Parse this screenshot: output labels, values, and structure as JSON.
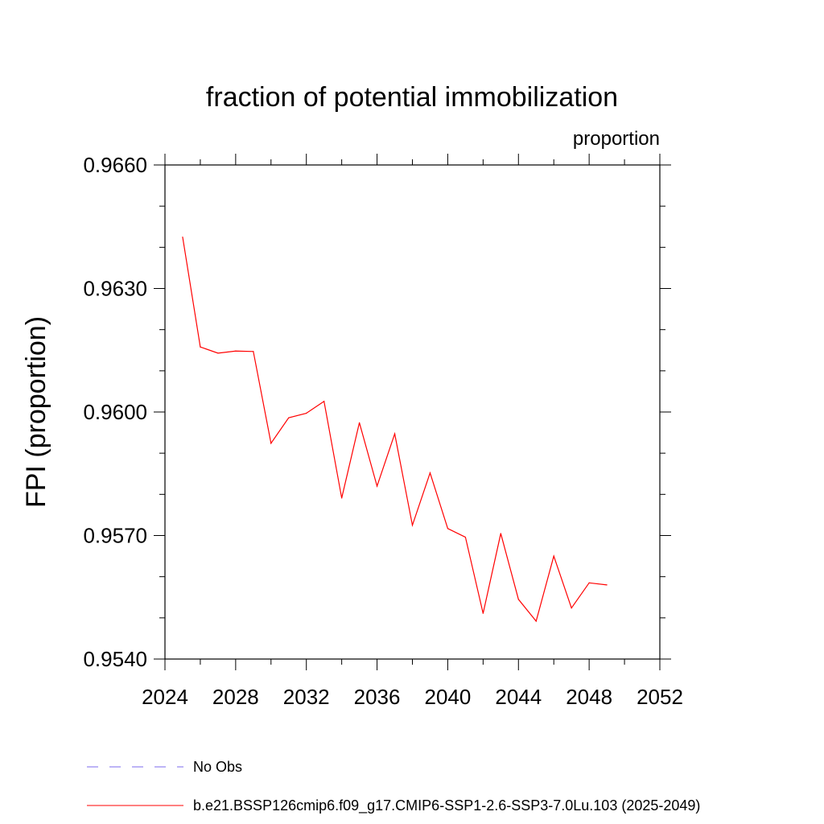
{
  "chart_data": {
    "type": "line",
    "title": "fraction of potential immobilization",
    "units_label": "proportion",
    "ylabel": "FPI  (proportion)",
    "xlabel": "",
    "xlim": [
      2024,
      2052
    ],
    "ylim": [
      0.954,
      0.966
    ],
    "x_ticks": [
      2024,
      2028,
      2032,
      2036,
      2040,
      2044,
      2048,
      2052
    ],
    "x_tick_labels": [
      "2024",
      "2028",
      "2032",
      "2036",
      "2040",
      "2044",
      "2048",
      "2052"
    ],
    "y_ticks": [
      0.954,
      0.957,
      0.96,
      0.963,
      0.966
    ],
    "y_tick_labels": [
      "0.9540",
      "0.9570",
      "0.9600",
      "0.9630",
      "0.9660"
    ],
    "grid": false,
    "series": [
      {
        "name": "b.e21.BSSP126cmip6.f09_g17.CMIP6-SSP1-2.6-SSP3-7.0Lu.103 (2025-2049)",
        "color": "#ff0000",
        "style": "solid",
        "x": [
          2025,
          2026,
          2027,
          2028,
          2029,
          2030,
          2031,
          2032,
          2033,
          2034,
          2035,
          2036,
          2037,
          2038,
          2039,
          2040,
          2041,
          2042,
          2043,
          2044,
          2045,
          2046,
          2047,
          2048,
          2049
        ],
        "y": [
          0.96425,
          0.96158,
          0.96143,
          0.96148,
          0.96147,
          0.95924,
          0.95986,
          0.95997,
          0.96026,
          0.95791,
          0.95974,
          0.9582,
          0.95947,
          0.95725,
          0.95852,
          0.95717,
          0.95696,
          0.95511,
          0.95705,
          0.95545,
          0.95492,
          0.9565,
          0.95524,
          0.95585,
          0.9558
        ]
      }
    ],
    "legend": [
      {
        "label": "No Obs",
        "color": "#7b68ee",
        "style": "dashed"
      },
      {
        "label": "b.e21.BSSP126cmip6.f09_g17.CMIP6-SSP1-2.6-SSP3-7.0Lu.103 (2025-2049)",
        "color": "#ff0000",
        "style": "solid"
      }
    ],
    "legend_position": "bottom"
  }
}
